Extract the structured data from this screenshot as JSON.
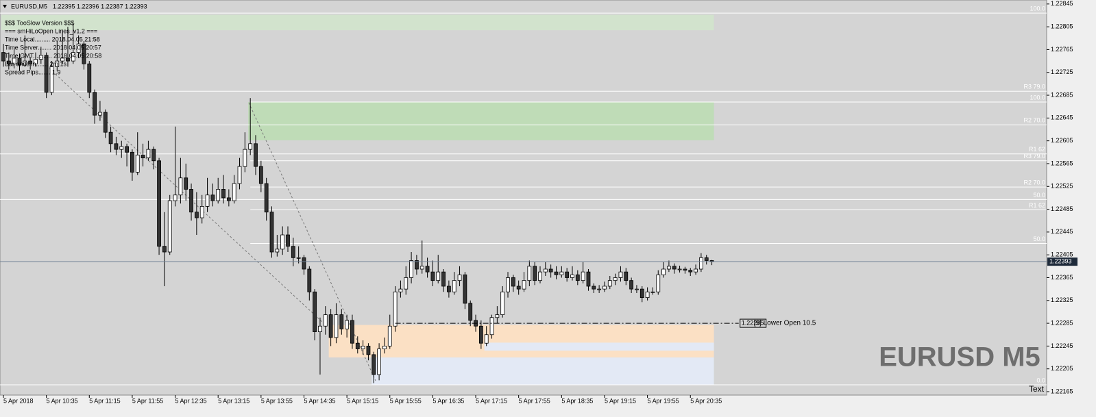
{
  "chart_data": {
    "type": "candlestick",
    "title": "EURUSD,M5",
    "quote": [
      1.22395,
      1.22396,
      1.22387,
      1.22393
    ],
    "watermark": "EURUSD M5",
    "corner_text": "Text",
    "ylim": [
      1.22159,
      1.22852
    ],
    "yticks": [
      1.22845,
      1.22805,
      1.22765,
      1.22725,
      1.22685,
      1.22645,
      1.22605,
      1.22565,
      1.22525,
      1.22485,
      1.22445,
      1.22405,
      1.22365,
      1.22325,
      1.22285,
      1.22245,
      1.22205,
      1.22165
    ],
    "xticks": [
      {
        "value": 0,
        "label": "5 Apr 2018"
      },
      {
        "value": 8,
        "label": "5 Apr 10:35"
      },
      {
        "value": 16,
        "label": "5 Apr 11:15"
      },
      {
        "value": 24,
        "label": "5 Apr 11:55"
      },
      {
        "value": 32,
        "label": "5 Apr 12:35"
      },
      {
        "value": 40,
        "label": "5 Apr 13:15"
      },
      {
        "value": 48,
        "label": "5 Apr 13:55"
      },
      {
        "value": 56,
        "label": "5 Apr 14:35"
      },
      {
        "value": 64,
        "label": "5 Apr 15:15"
      },
      {
        "value": 72,
        "label": "5 Apr 15:55"
      },
      {
        "value": 80,
        "label": "5 Apr 16:35"
      },
      {
        "value": 88,
        "label": "5 Apr 17:15"
      },
      {
        "value": 96,
        "label": "5 Apr 17:55"
      },
      {
        "value": 104,
        "label": "5 Apr 18:35"
      },
      {
        "value": 112,
        "label": "5 Apr 19:15"
      },
      {
        "value": 120,
        "label": "5 Apr 19:55"
      },
      {
        "value": 128,
        "label": "5 Apr 20:35"
      }
    ],
    "last_price": 1.22393,
    "bull_color": "#ffffff",
    "bear_color": "#333333",
    "info_lines": [
      "$$$ TooSlow Version $$$",
      "=== smHiLoOpen Lines_v1.2 ===",
      "Time Local......... 2018.04.05 21:58",
      "Time Server........ 2018.04.05 20:57",
      "Time GMT........... 2018.04.05 20:58",
      "Bar ends in....... 2m 1s",
      "Spread Pips....... 1.9"
    ],
    "zones": [
      {
        "from": 1.22826,
        "to": 1.22799,
        "start": 0,
        "end": 132,
        "color": "#d2e3cd"
      },
      {
        "from": 1.22673,
        "to": 1.22606,
        "start": 46,
        "end": 132,
        "color": "#bfdcb7"
      },
      {
        "from": 1.22282,
        "to": 1.22225,
        "start": 61,
        "end": 132,
        "color": "#fbe0c4"
      },
      {
        "from": 1.22225,
        "to": 1.22177,
        "start": 69,
        "end": 132,
        "color": "#e3e9f5"
      },
      {
        "from": 1.22251,
        "to": 1.22237,
        "start": 90,
        "end": 132,
        "color": "#e3e9f5"
      }
    ],
    "levels": [
      {
        "price": 1.22829,
        "label": "100.0",
        "start": 0
      },
      {
        "price": 1.22692,
        "label": "R3 79.0",
        "start": 0
      },
      {
        "price": 1.22673,
        "label": "100.0",
        "start": 46
      },
      {
        "price": 1.22633,
        "label": "R2 70.0",
        "start": 0
      },
      {
        "price": 1.22582,
        "label": "R1 62",
        "start": 0
      },
      {
        "price": 1.2257,
        "label": "R3 79.0",
        "start": 46
      },
      {
        "price": 1.22524,
        "label": "R2 70.0",
        "start": 46
      },
      {
        "price": 1.22502,
        "label": "50.0",
        "start": 0
      },
      {
        "price": 1.22484,
        "label": "R1 62",
        "start": 46
      },
      {
        "price": 1.22425,
        "label": "50.0",
        "start": 46
      },
      {
        "price": 1.22177,
        "label": "0.0",
        "start": 0
      }
    ],
    "annotation": {
      "price": 1.22285,
      "start": 73,
      "end": 137,
      "text": "[9] Lower Open 10.5"
    },
    "candles": [
      [
        1.2276,
        1.22775,
        1.22735,
        1.22745
      ],
      [
        1.22745,
        1.2276,
        1.2273,
        1.2274
      ],
      [
        1.2274,
        1.2277,
        1.22732,
        1.2275
      ],
      [
        1.2275,
        1.22758,
        1.22728,
        1.22738
      ],
      [
        1.22738,
        1.2279,
        1.22735,
        1.22745
      ],
      [
        1.22745,
        1.22752,
        1.2273,
        1.2274
      ],
      [
        1.2274,
        1.2276,
        1.22735,
        1.22748
      ],
      [
        1.22748,
        1.2277,
        1.2274,
        1.22755
      ],
      [
        1.22755,
        1.2276,
        1.2268,
        1.2269
      ],
      [
        1.2269,
        1.22745,
        1.22685,
        1.22735
      ],
      [
        1.22735,
        1.2278,
        1.22728,
        1.22745
      ],
      [
        1.22745,
        1.228,
        1.2274,
        1.2275
      ],
      [
        1.2275,
        1.22805,
        1.22735,
        1.22745
      ],
      [
        1.22745,
        1.2281,
        1.2274,
        1.2276
      ],
      [
        1.2276,
        1.2279,
        1.2275,
        1.22775
      ],
      [
        1.22775,
        1.2278,
        1.2273,
        1.2274
      ],
      [
        1.2274,
        1.22745,
        1.2268,
        1.2269
      ],
      [
        1.2269,
        1.22695,
        1.22635,
        1.2265
      ],
      [
        1.2265,
        1.22675,
        1.2264,
        1.22655
      ],
      [
        1.22655,
        1.2266,
        1.2261,
        1.2262
      ],
      [
        1.2262,
        1.2263,
        1.22585,
        1.226
      ],
      [
        1.226,
        1.22612,
        1.2258,
        1.2259
      ],
      [
        1.2259,
        1.22605,
        1.22575,
        1.22595
      ],
      [
        1.22595,
        1.226,
        1.2256,
        1.22585
      ],
      [
        1.22585,
        1.2259,
        1.22535,
        1.2255
      ],
      [
        1.2255,
        1.2262,
        1.22545,
        1.2258
      ],
      [
        1.2258,
        1.226,
        1.2256,
        1.22575
      ],
      [
        1.22575,
        1.22605,
        1.2257,
        1.2259
      ],
      [
        1.2259,
        1.22595,
        1.22555,
        1.2257
      ],
      [
        1.2257,
        1.22575,
        1.22405,
        1.2242
      ],
      [
        1.2242,
        1.2248,
        1.2235,
        1.2241
      ],
      [
        1.2241,
        1.2251,
        1.22405,
        1.225
      ],
      [
        1.225,
        1.2263,
        1.2249,
        1.2251
      ],
      [
        1.2251,
        1.22575,
        1.22495,
        1.2254
      ],
      [
        1.2254,
        1.22565,
        1.225,
        1.2252
      ],
      [
        1.2252,
        1.2253,
        1.22465,
        1.2248
      ],
      [
        1.2248,
        1.22515,
        1.2244,
        1.2247
      ],
      [
        1.2247,
        1.2251,
        1.2246,
        1.2249
      ],
      [
        1.2249,
        1.2254,
        1.2248,
        1.2251
      ],
      [
        1.2251,
        1.2253,
        1.2249,
        1.225
      ],
      [
        1.225,
        1.2254,
        1.22495,
        1.2252
      ],
      [
        1.2252,
        1.22545,
        1.22495,
        1.22505
      ],
      [
        1.22505,
        1.2252,
        1.2249,
        1.225
      ],
      [
        1.225,
        1.22545,
        1.22495,
        1.2253
      ],
      [
        1.2253,
        1.22575,
        1.2252,
        1.2256
      ],
      [
        1.2256,
        1.2262,
        1.2255,
        1.2259
      ],
      [
        1.2259,
        1.2268,
        1.2258,
        1.226
      ],
      [
        1.226,
        1.22615,
        1.22545,
        1.2256
      ],
      [
        1.2256,
        1.2257,
        1.22515,
        1.2253
      ],
      [
        1.2253,
        1.2254,
        1.22465,
        1.2248
      ],
      [
        1.2248,
        1.2249,
        1.224,
        1.2241
      ],
      [
        1.2241,
        1.2244,
        1.22402,
        1.22415
      ],
      [
        1.22415,
        1.22455,
        1.22405,
        1.2244
      ],
      [
        1.2244,
        1.22455,
        1.2241,
        1.2242
      ],
      [
        1.2242,
        1.22435,
        1.22385,
        1.224
      ],
      [
        1.224,
        1.2242,
        1.2239,
        1.224
      ],
      [
        1.224,
        1.22405,
        1.2237,
        1.2238
      ],
      [
        1.2238,
        1.22385,
        1.22325,
        1.2234
      ],
      [
        1.2234,
        1.22345,
        1.22255,
        1.2227
      ],
      [
        1.2227,
        1.22295,
        1.22195,
        1.2228
      ],
      [
        1.2228,
        1.22315,
        1.22265,
        1.223
      ],
      [
        1.223,
        1.2231,
        1.22245,
        1.2226
      ],
      [
        1.2226,
        1.2232,
        1.2225,
        1.223
      ],
      [
        1.223,
        1.2231,
        1.22265,
        1.22275
      ],
      [
        1.22275,
        1.223,
        1.2226,
        1.2229
      ],
      [
        1.2229,
        1.223,
        1.2224,
        1.2225
      ],
      [
        1.2225,
        1.22262,
        1.22232,
        1.2224
      ],
      [
        1.2224,
        1.22255,
        1.2223,
        1.22245
      ],
      [
        1.22245,
        1.2225,
        1.2222,
        1.2223
      ],
      [
        1.2223,
        1.22235,
        1.2218,
        1.22195
      ],
      [
        1.22195,
        1.2225,
        1.22185,
        1.2224
      ],
      [
        1.2224,
        1.2226,
        1.22232,
        1.22245
      ],
      [
        1.22245,
        1.223,
        1.2224,
        1.2228
      ],
      [
        1.2228,
        1.2235,
        1.2227,
        1.2234
      ],
      [
        1.2234,
        1.2236,
        1.2233,
        1.22345
      ],
      [
        1.22345,
        1.22385,
        1.22335,
        1.22365
      ],
      [
        1.22365,
        1.2241,
        1.22355,
        1.22395
      ],
      [
        1.22395,
        1.22405,
        1.2237,
        1.2238
      ],
      [
        1.2238,
        1.2243,
        1.22372,
        1.22385
      ],
      [
        1.22385,
        1.224,
        1.22365,
        1.22375
      ],
      [
        1.22375,
        1.22395,
        1.2235,
        1.2236
      ],
      [
        1.2236,
        1.22405,
        1.22355,
        1.22375
      ],
      [
        1.22375,
        1.2238,
        1.2234,
        1.2235
      ],
      [
        1.2235,
        1.2236,
        1.2233,
        1.2234
      ],
      [
        1.2234,
        1.22375,
        1.22335,
        1.2236
      ],
      [
        1.2236,
        1.22385,
        1.2235,
        1.2237
      ],
      [
        1.2237,
        1.22375,
        1.2231,
        1.2232
      ],
      [
        1.2232,
        1.22325,
        1.2228,
        1.2229
      ],
      [
        1.2229,
        1.223,
        1.2227,
        1.2228
      ],
      [
        1.2228,
        1.2229,
        1.2224,
        1.2225
      ],
      [
        1.2225,
        1.2228,
        1.22245,
        1.22265
      ],
      [
        1.22265,
        1.223,
        1.22258,
        1.22295
      ],
      [
        1.22295,
        1.22315,
        1.22285,
        1.223
      ],
      [
        1.223,
        1.2235,
        1.22295,
        1.2234
      ],
      [
        1.2234,
        1.22375,
        1.2233,
        1.22365
      ],
      [
        1.22365,
        1.2237,
        1.2234,
        1.2235
      ],
      [
        1.2235,
        1.2236,
        1.22335,
        1.22345
      ],
      [
        1.22345,
        1.22375,
        1.2234,
        1.2236
      ],
      [
        1.2236,
        1.22395,
        1.2235,
        1.22385
      ],
      [
        1.22385,
        1.22392,
        1.22352,
        1.2236
      ],
      [
        1.2236,
        1.22385,
        1.22355,
        1.22375
      ],
      [
        1.22375,
        1.22392,
        1.22368,
        1.2238
      ],
      [
        1.2238,
        1.22388,
        1.22365,
        1.22375
      ],
      [
        1.22375,
        1.22385,
        1.22362,
        1.2237
      ],
      [
        1.2237,
        1.22385,
        1.22365,
        1.22375
      ],
      [
        1.22375,
        1.22382,
        1.22358,
        1.22365
      ],
      [
        1.22365,
        1.22385,
        1.2236,
        1.2237
      ],
      [
        1.2237,
        1.22378,
        1.22352,
        1.2236
      ],
      [
        1.2236,
        1.22392,
        1.22355,
        1.22375
      ],
      [
        1.22375,
        1.2238,
        1.22342,
        1.2235
      ],
      [
        1.2235,
        1.22355,
        1.22338,
        1.22345
      ],
      [
        1.22345,
        1.22352,
        1.22338,
        1.22345
      ],
      [
        1.22345,
        1.22358,
        1.2234,
        1.2235
      ],
      [
        1.2235,
        1.22368,
        1.22345,
        1.2236
      ],
      [
        1.2236,
        1.22372,
        1.22352,
        1.22365
      ],
      [
        1.22365,
        1.22385,
        1.22358,
        1.22375
      ],
      [
        1.22375,
        1.22382,
        1.22352,
        1.2236
      ],
      [
        1.2236,
        1.22365,
        1.22338,
        1.22345
      ],
      [
        1.22345,
        1.22352,
        1.22338,
        1.22345
      ],
      [
        1.22345,
        1.2235,
        1.22322,
        1.2233
      ],
      [
        1.2233,
        1.22348,
        1.22325,
        1.2234
      ],
      [
        1.2234,
        1.22348,
        1.22335,
        1.2234
      ],
      [
        1.2234,
        1.22378,
        1.22335,
        1.2237
      ],
      [
        1.2237,
        1.22392,
        1.22365,
        1.2238
      ],
      [
        1.2238,
        1.22395,
        1.22375,
        1.22385
      ],
      [
        1.22385,
        1.2239,
        1.22372,
        1.2238
      ],
      [
        1.2238,
        1.22386,
        1.22374,
        1.2238
      ],
      [
        1.2238,
        1.22384,
        1.22372,
        1.22378
      ],
      [
        1.22378,
        1.22382,
        1.22368,
        1.22375
      ],
      [
        1.22375,
        1.22388,
        1.2237,
        1.2238
      ],
      [
        1.2238,
        1.22408,
        1.22375,
        1.224
      ],
      [
        1.224,
        1.22405,
        1.22388,
        1.22395
      ],
      [
        1.22395,
        1.22396,
        1.22387,
        1.22393
      ]
    ]
  }
}
